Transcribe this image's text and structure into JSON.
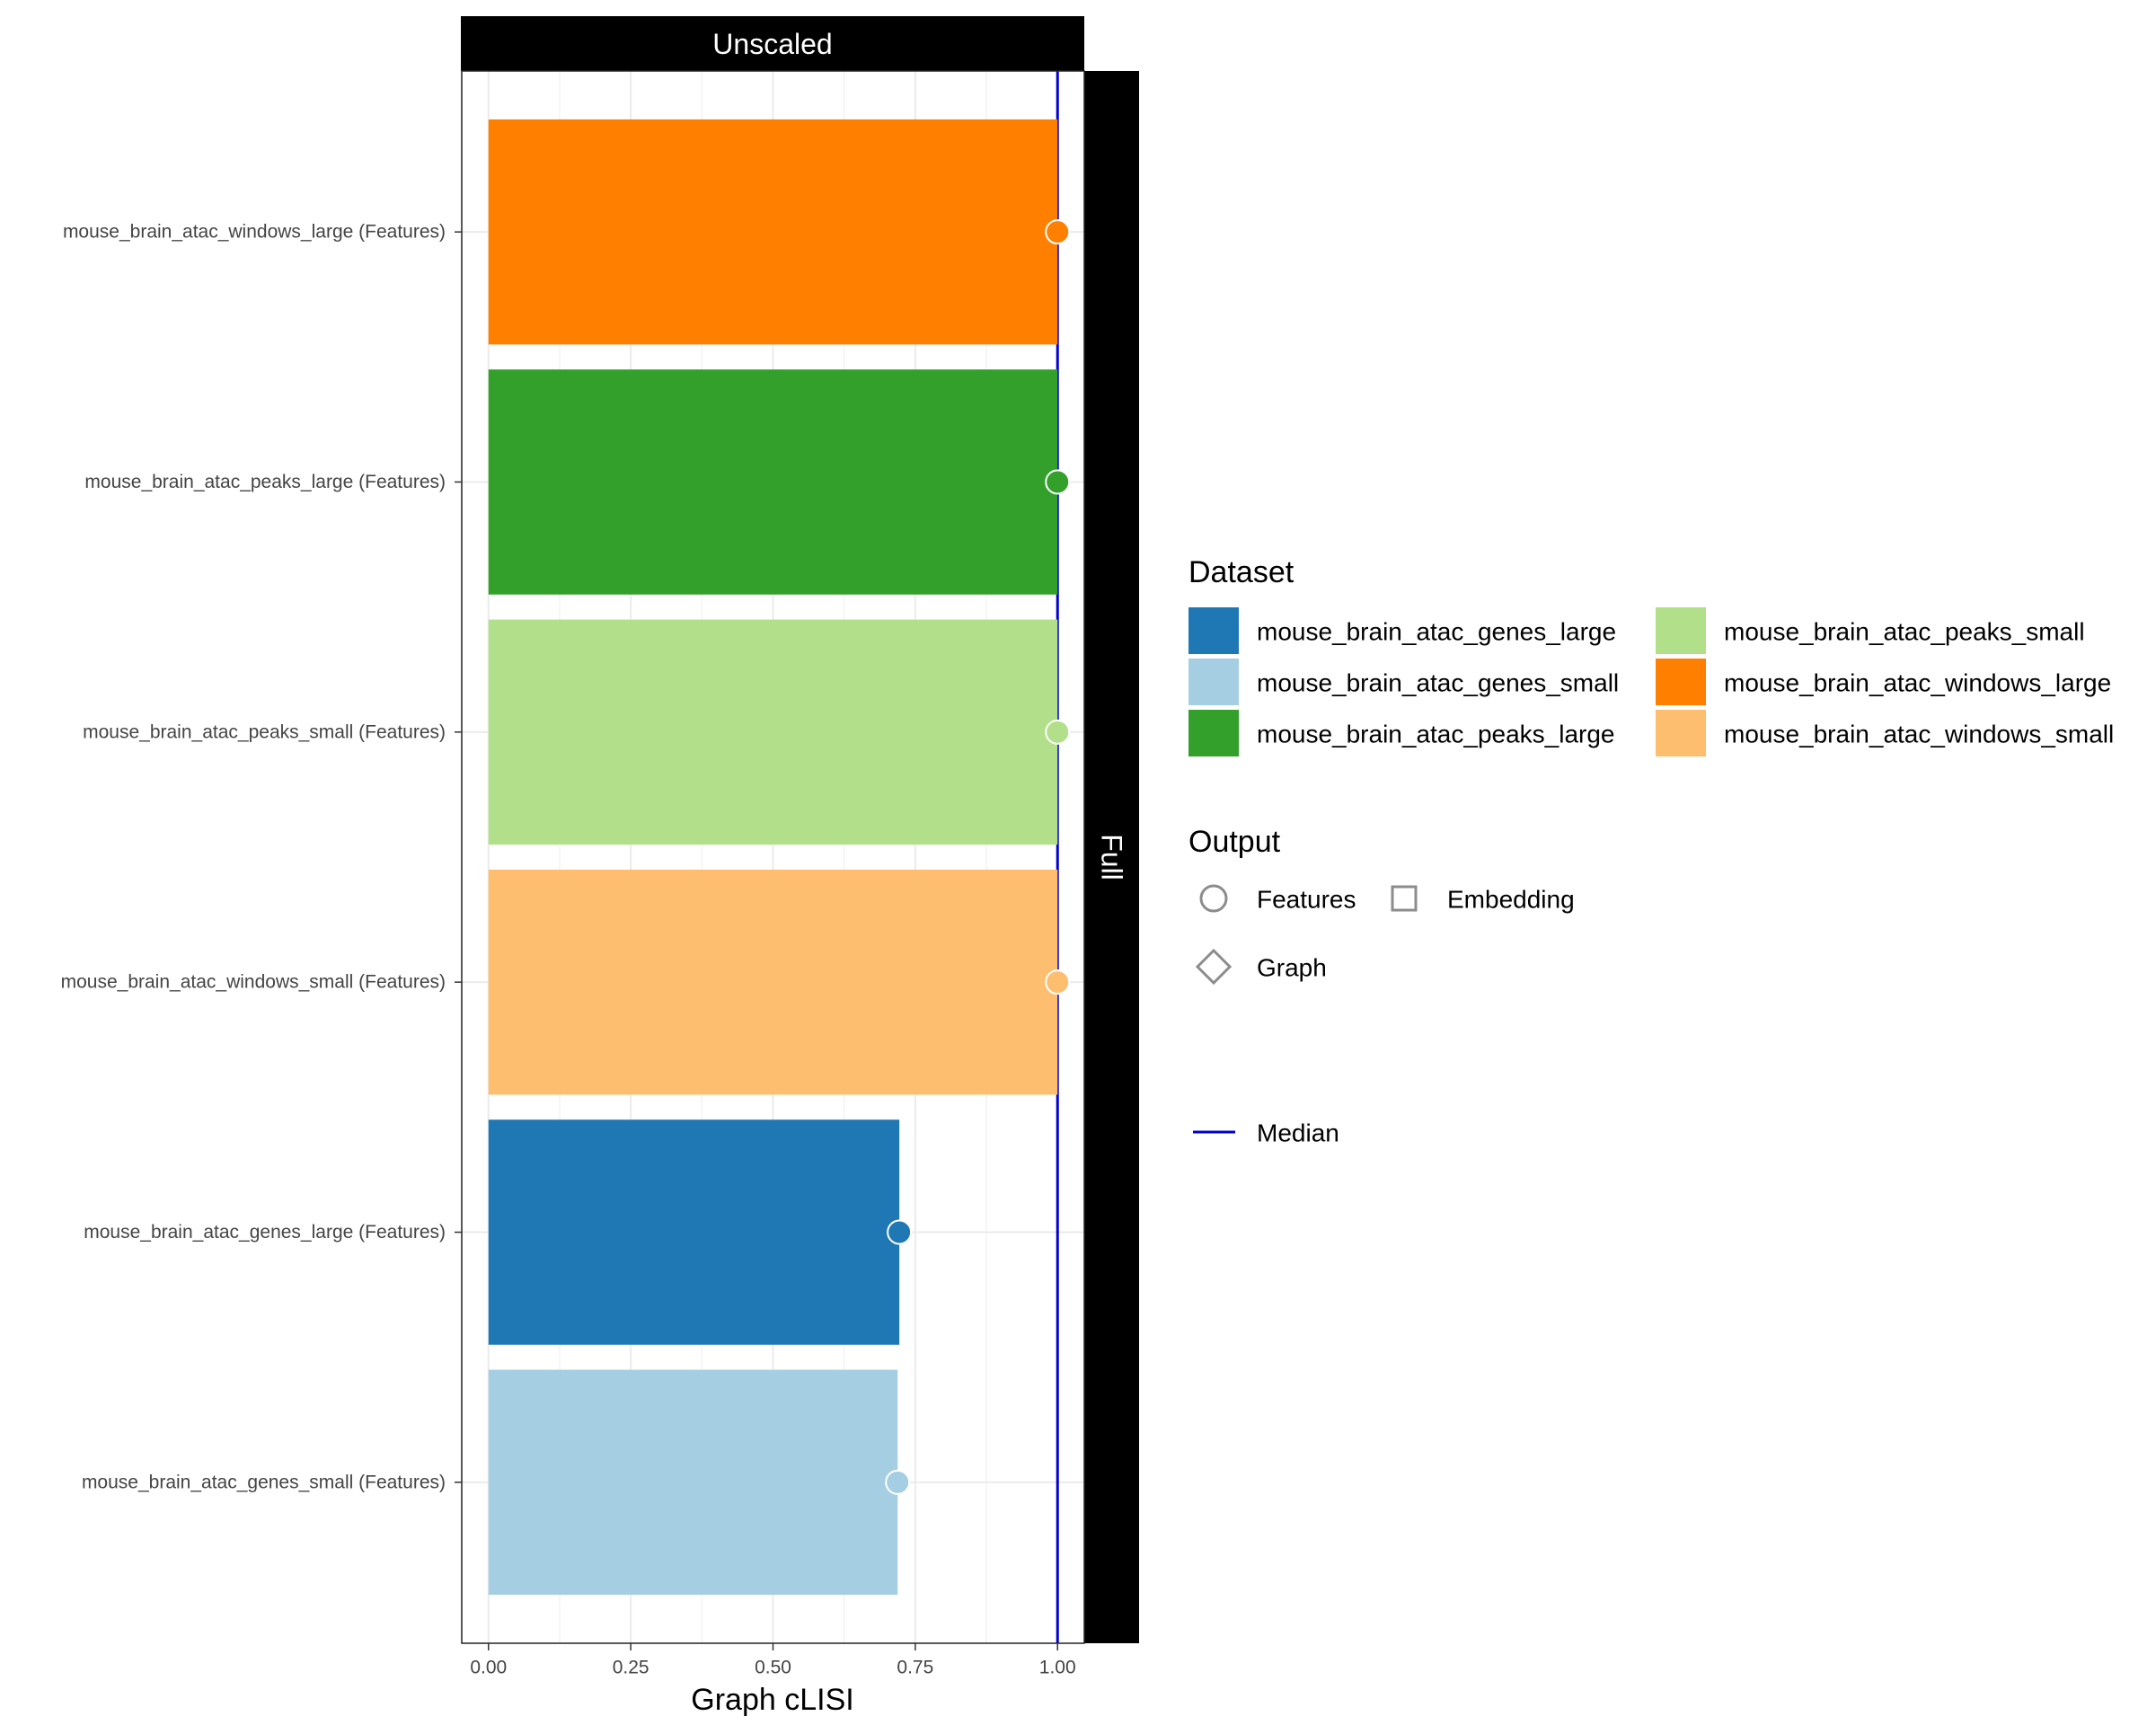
{
  "chart_data": {
    "type": "bar",
    "orientation": "horizontal",
    "facet_top": "Unscaled",
    "facet_right": "Full",
    "xlabel": "Graph cLISI",
    "ylabel": "",
    "xlim": [
      -0.047,
      1.047
    ],
    "x_ticks": [
      0.0,
      0.25,
      0.5,
      0.75,
      1.0
    ],
    "x_tick_labels": [
      "0.00",
      "0.25",
      "0.50",
      "0.75",
      "1.00"
    ],
    "grid": true,
    "median": 1.0,
    "median_color": "#0000cc",
    "categories": [
      "mouse_brain_atac_windows_large (Features)",
      "mouse_brain_atac_peaks_large (Features)",
      "mouse_brain_atac_peaks_small (Features)",
      "mouse_brain_atac_windows_small (Features)",
      "mouse_brain_atac_genes_large (Features)",
      "mouse_brain_atac_genes_small (Features)"
    ],
    "values": [
      1.0,
      1.0,
      1.0,
      1.0,
      0.722,
      0.719
    ],
    "datasets": [
      "mouse_brain_atac_windows_large",
      "mouse_brain_atac_peaks_large",
      "mouse_brain_atac_peaks_small",
      "mouse_brain_atac_windows_small",
      "mouse_brain_atac_genes_large",
      "mouse_brain_atac_genes_small"
    ],
    "outputs": [
      "Features",
      "Features",
      "Features",
      "Features",
      "Features",
      "Features"
    ],
    "legend_placement": "right",
    "legend": {
      "dataset_title": "Dataset",
      "dataset_entries": [
        {
          "name": "mouse_brain_atac_genes_large",
          "color": "#1f78b4"
        },
        {
          "name": "mouse_brain_atac_genes_small",
          "color": "#a6cee3"
        },
        {
          "name": "mouse_brain_atac_peaks_large",
          "color": "#33a02c"
        },
        {
          "name": "mouse_brain_atac_peaks_small",
          "color": "#b2df8a"
        },
        {
          "name": "mouse_brain_atac_windows_large",
          "color": "#ff7f00"
        },
        {
          "name": "mouse_brain_atac_windows_small",
          "color": "#fdbf6f"
        }
      ],
      "output_title": "Output",
      "output_entries": [
        {
          "name": "Features",
          "shape": "circle"
        },
        {
          "name": "Embedding",
          "shape": "square"
        },
        {
          "name": "Graph",
          "shape": "diamond"
        }
      ],
      "median_label": "Median"
    }
  }
}
